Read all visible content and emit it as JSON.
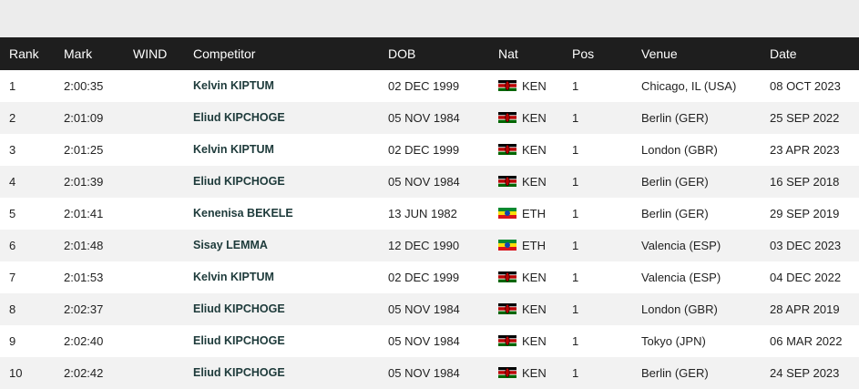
{
  "headers": {
    "rank": "Rank",
    "mark": "Mark",
    "wind": "WIND",
    "competitor": "Competitor",
    "dob": "DOB",
    "nat": "Nat",
    "pos": "Pos",
    "venue": "Venue",
    "date": "Date"
  },
  "flag_colors": {
    "KEN": [
      "#000000",
      "#ffffff",
      "#bb0000",
      "#ffffff",
      "#006600"
    ],
    "ETH": [
      "#078930",
      "#fcdd09",
      "#da121a"
    ]
  },
  "rows": [
    {
      "rank": "1",
      "mark": "2:00:35",
      "wind": "",
      "competitor": "Kelvin KIPTUM",
      "dob": "02 DEC 1999",
      "nat": "KEN",
      "pos": "1",
      "venue": "Chicago, IL (USA)",
      "date": "08 OCT 2023"
    },
    {
      "rank": "2",
      "mark": "2:01:09",
      "wind": "",
      "competitor": "Eliud KIPCHOGE",
      "dob": "05 NOV 1984",
      "nat": "KEN",
      "pos": "1",
      "venue": "Berlin (GER)",
      "date": "25 SEP 2022"
    },
    {
      "rank": "3",
      "mark": "2:01:25",
      "wind": "",
      "competitor": "Kelvin KIPTUM",
      "dob": "02 DEC 1999",
      "nat": "KEN",
      "pos": "1",
      "venue": "London (GBR)",
      "date": "23 APR 2023"
    },
    {
      "rank": "4",
      "mark": "2:01:39",
      "wind": "",
      "competitor": "Eliud KIPCHOGE",
      "dob": "05 NOV 1984",
      "nat": "KEN",
      "pos": "1",
      "venue": "Berlin (GER)",
      "date": "16 SEP 2018"
    },
    {
      "rank": "5",
      "mark": "2:01:41",
      "wind": "",
      "competitor": "Kenenisa BEKELE",
      "dob": "13 JUN 1982",
      "nat": "ETH",
      "pos": "1",
      "venue": "Berlin (GER)",
      "date": "29 SEP 2019"
    },
    {
      "rank": "6",
      "mark": "2:01:48",
      "wind": "",
      "competitor": "Sisay LEMMA",
      "dob": "12 DEC 1990",
      "nat": "ETH",
      "pos": "1",
      "venue": "Valencia (ESP)",
      "date": "03 DEC 2023"
    },
    {
      "rank": "7",
      "mark": "2:01:53",
      "wind": "",
      "competitor": "Kelvin KIPTUM",
      "dob": "02 DEC 1999",
      "nat": "KEN",
      "pos": "1",
      "venue": "Valencia (ESP)",
      "date": "04 DEC 2022"
    },
    {
      "rank": "8",
      "mark": "2:02:37",
      "wind": "",
      "competitor": "Eliud KIPCHOGE",
      "dob": "05 NOV 1984",
      "nat": "KEN",
      "pos": "1",
      "venue": "London (GBR)",
      "date": "28 APR 2019"
    },
    {
      "rank": "9",
      "mark": "2:02:40",
      "wind": "",
      "competitor": "Eliud KIPCHOGE",
      "dob": "05 NOV 1984",
      "nat": "KEN",
      "pos": "1",
      "venue": "Tokyo (JPN)",
      "date": "06 MAR 2022"
    },
    {
      "rank": "10",
      "mark": "2:02:42",
      "wind": "",
      "competitor": "Eliud KIPCHOGE",
      "dob": "05 NOV 1984",
      "nat": "KEN",
      "pos": "1",
      "venue": "Berlin (GER)",
      "date": "24 SEP 2023"
    }
  ]
}
